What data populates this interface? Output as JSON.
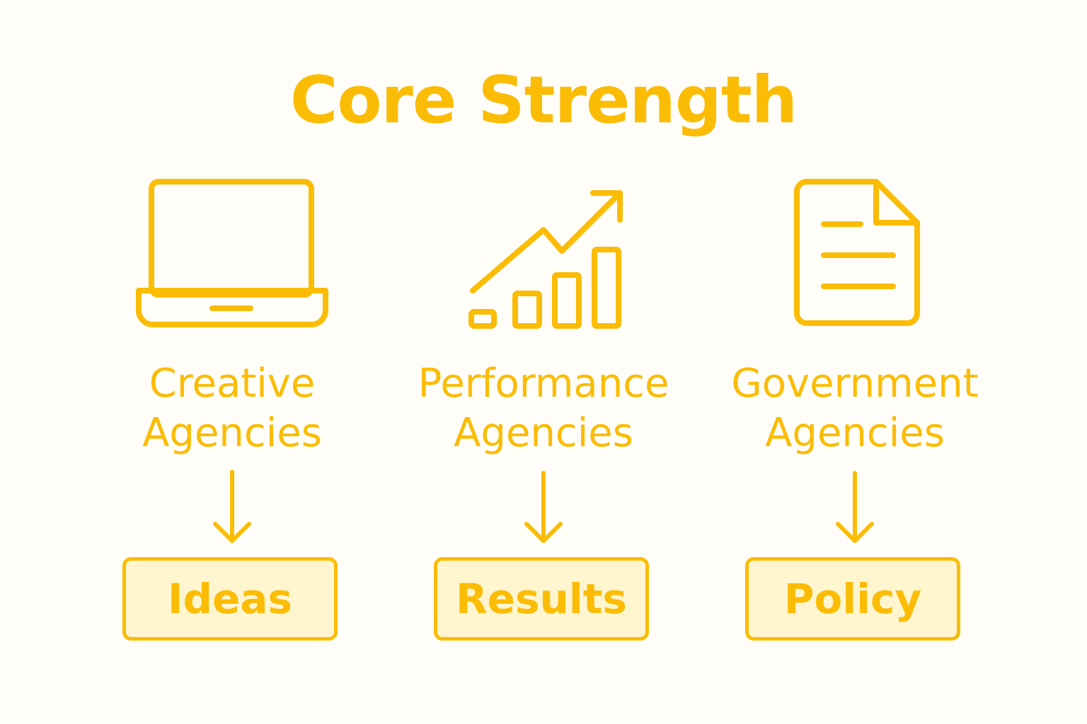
{
  "title": "Core Strength",
  "accent_color": "#fbbc05",
  "columns": [
    {
      "icon": "laptop-icon",
      "label_line1": "Creative",
      "label_line2": "Agencies",
      "result": "Ideas"
    },
    {
      "icon": "growth-chart-icon",
      "label_line1": "Performance",
      "label_line2": "Agencies",
      "result": "Results"
    },
    {
      "icon": "document-icon",
      "label_line1": "Government",
      "label_line2": "Agencies",
      "result": "Policy"
    }
  ]
}
